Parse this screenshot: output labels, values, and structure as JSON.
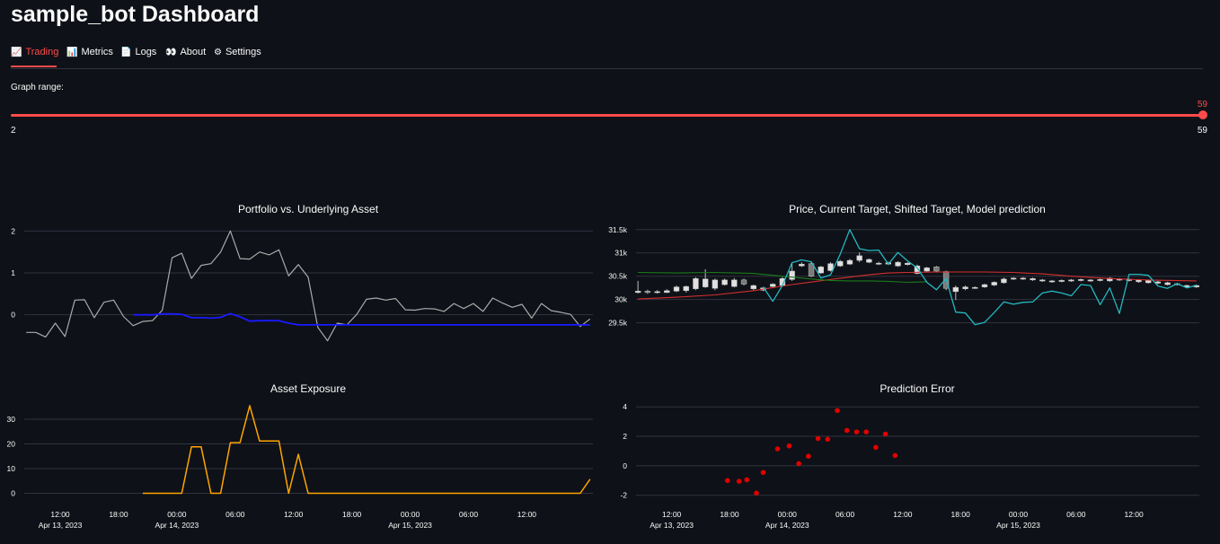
{
  "app": {
    "title": "sample_bot Dashboard"
  },
  "tabs": [
    {
      "icon": "📈",
      "label": "Trading"
    },
    {
      "icon": "📊",
      "label": "Metrics"
    },
    {
      "icon": "📄",
      "label": "Logs"
    },
    {
      "icon": "👀",
      "label": "About"
    },
    {
      "icon": "⚙",
      "label": "Settings"
    }
  ],
  "range": {
    "label": "Graph range:",
    "value": "59",
    "min": "2",
    "max": "59",
    "fraction": 1.0
  },
  "colors": {
    "accent": "#ff4b4b",
    "portfolio": "#aaaaaa",
    "underlying": "#1a1aff",
    "exposure": "#ffa500",
    "model": "#23b8c0",
    "current_target": "#d32f2f",
    "shifted_target": "#1b7a1b",
    "error": "#e00000"
  },
  "time_axis": {
    "labels": [
      {
        "h": 12,
        "text": "12:00",
        "date": "Apr 13, 2023"
      },
      {
        "h": 18,
        "text": "18:00",
        "date": ""
      },
      {
        "h": 24,
        "text": "00:00",
        "date": "Apr 14, 2023"
      },
      {
        "h": 30,
        "text": "06:00",
        "date": ""
      },
      {
        "h": 36,
        "text": "12:00",
        "date": ""
      },
      {
        "h": 42,
        "text": "18:00",
        "date": ""
      },
      {
        "h": 48,
        "text": "00:00",
        "date": "Apr 15, 2023"
      },
      {
        "h": 54,
        "text": "06:00",
        "date": ""
      },
      {
        "h": 60,
        "text": "12:00",
        "date": ""
      }
    ]
  },
  "chart_data": [
    {
      "type": "line",
      "title": "Portfolio vs. Underlying Asset",
      "ylim": [
        -0.95,
        2.2
      ],
      "yticks": [
        0,
        1,
        2
      ],
      "xlim": [
        8.3,
        66.8
      ],
      "grid": true,
      "series": [
        {
          "x": [
            8.5,
            9.5,
            10.5,
            11.5,
            12.5,
            13.5,
            14.5,
            15.5,
            16.5,
            17.5,
            18.5,
            19.5,
            20.5,
            21.5,
            22.5,
            23.5,
            24.5,
            25.5,
            26.5,
            27.5,
            28.5,
            29.5,
            30.5,
            31.5,
            32.5,
            33.5,
            34.5,
            35.5,
            36.5,
            37.5,
            38.5,
            39.5,
            40.5,
            41.5,
            42.5,
            43.5,
            44.5,
            45.5,
            46.5,
            47.5,
            48.5,
            49.5,
            50.5,
            51.5,
            52.5,
            53.5,
            54.5,
            55.5,
            56.5,
            57.5,
            58.5,
            59.5,
            60.5,
            61.5,
            62.5,
            63.5,
            64.5,
            65.5,
            66.5
          ],
          "values": [
            -0.42,
            -0.42,
            -0.53,
            -0.2,
            -0.52,
            0.35,
            0.36,
            -0.07,
            0.3,
            0.35,
            -0.04,
            -0.26,
            -0.16,
            -0.14,
            0.11,
            1.36,
            1.47,
            0.87,
            1.18,
            1.22,
            1.5,
            2.0,
            1.34,
            1.33,
            1.5,
            1.43,
            1.55,
            0.93,
            1.2,
            0.9,
            -0.3,
            -0.62,
            -0.2,
            -0.24,
            0.01,
            0.37,
            0.4,
            0.35,
            0.39,
            0.12,
            0.11,
            0.15,
            0.14,
            0.08,
            0.27,
            0.15,
            0.27,
            0.08,
            0.4,
            0.28,
            0.18,
            0.25,
            -0.08,
            0.27,
            0.1,
            0.06,
            0.01,
            -0.28,
            -0.1
          ]
        },
        {
          "x": [
            19.5,
            20.5,
            21.5,
            22.5,
            23.5,
            24.5,
            25.5,
            26.5,
            27.5,
            28.5,
            29.5,
            30.5,
            31.5,
            32.5,
            33.5,
            34.5,
            35.5,
            36.5,
            37.5,
            38.5,
            39.5,
            40.5,
            41.5,
            42.5,
            43.5,
            44.5,
            45.5,
            46.5,
            47.5,
            48.5,
            49.5,
            50.5,
            51.5,
            52.5,
            53.5,
            54.5,
            55.5,
            56.5,
            57.5,
            58.5,
            59.5,
            60.5,
            61.5,
            62.5,
            63.5,
            64.5,
            65.5,
            66.5
          ],
          "values": [
            0.0,
            0.0,
            0.0,
            0.02,
            0.02,
            0.01,
            -0.07,
            -0.07,
            -0.08,
            -0.06,
            0.03,
            -0.05,
            -0.15,
            -0.14,
            -0.14,
            -0.14,
            -0.2,
            -0.24,
            -0.24,
            -0.24,
            -0.24,
            -0.24,
            -0.24,
            -0.24,
            -0.24,
            -0.24,
            -0.24,
            -0.24,
            -0.24,
            -0.24,
            -0.24,
            -0.24,
            -0.24,
            -0.24,
            -0.24,
            -0.24,
            -0.24,
            -0.24,
            -0.24,
            -0.24,
            -0.24,
            -0.24,
            -0.24,
            -0.24,
            -0.24,
            -0.24,
            -0.24,
            -0.24
          ]
        }
      ]
    },
    {
      "type": "line",
      "title": "Price, Current Target, Shifted Target, Model prediction",
      "ylim": [
        29300,
        31650
      ],
      "yticks": [
        29500,
        30000,
        30500,
        31000,
        31500
      ],
      "yticklabels": [
        "29.5k",
        "30k",
        "30.5k",
        "31k",
        "31.5k"
      ],
      "xlim": [
        8.3,
        66.8
      ],
      "grid": true,
      "candles": [
        [
          8.5,
          30150,
          30180,
          30400,
          30130
        ],
        [
          9.5,
          30180,
          30150,
          30210,
          30120
        ],
        [
          10.5,
          30150,
          30170,
          30200,
          30130
        ],
        [
          11.5,
          30150,
          30190,
          30220,
          30140
        ],
        [
          12.5,
          30180,
          30270,
          30300,
          30160
        ],
        [
          13.5,
          30190,
          30280,
          30300,
          30150
        ],
        [
          14.5,
          30230,
          30450,
          30480,
          30200
        ],
        [
          15.5,
          30270,
          30440,
          30650,
          30250
        ],
        [
          16.5,
          30240,
          30420,
          30450,
          30200
        ],
        [
          17.5,
          30320,
          30420,
          30450,
          30300
        ],
        [
          18.5,
          30280,
          30420,
          30460,
          30260
        ],
        [
          19.5,
          30420,
          30330,
          30450,
          30300
        ],
        [
          20.5,
          30230,
          30300,
          30320,
          30200
        ],
        [
          21.5,
          30200,
          30250,
          30270,
          30180
        ],
        [
          22.5,
          30280,
          30330,
          30350,
          30250
        ],
        [
          23.5,
          30300,
          30450,
          30480,
          30280
        ],
        [
          24.5,
          30430,
          30610,
          30800,
          30400
        ],
        [
          25.5,
          30720,
          30760,
          30800,
          30700
        ],
        [
          26.5,
          30770,
          30500,
          30800,
          30480
        ],
        [
          27.5,
          30570,
          30700,
          30720,
          30550
        ],
        [
          28.5,
          30620,
          30770,
          30800,
          30600
        ],
        [
          29.5,
          30720,
          30820,
          30850,
          30700
        ],
        [
          30.5,
          30760,
          30840,
          30870,
          30740
        ],
        [
          31.5,
          30840,
          30940,
          31010,
          30800
        ],
        [
          32.5,
          30800,
          30860,
          30880,
          30780
        ],
        [
          33.5,
          30760,
          30780,
          30810,
          30740
        ],
        [
          34.5,
          30760,
          30790,
          30810,
          30740
        ],
        [
          35.5,
          30720,
          30800,
          30820,
          30700
        ],
        [
          36.5,
          30750,
          30780,
          30800,
          30730
        ],
        [
          37.5,
          30560,
          30720,
          30750,
          30540
        ],
        [
          38.5,
          30610,
          30680,
          30700,
          30590
        ],
        [
          39.5,
          30700,
          30610,
          30720,
          30580
        ],
        [
          40.5,
          30600,
          30240,
          30620,
          30200
        ],
        [
          41.5,
          30170,
          30260,
          30300,
          29990
        ],
        [
          42.5,
          30230,
          30270,
          30300,
          30200
        ],
        [
          43.5,
          30250,
          30260,
          30280,
          30230
        ],
        [
          44.5,
          30270,
          30320,
          30340,
          30250
        ],
        [
          45.5,
          30310,
          30370,
          30390,
          30290
        ],
        [
          46.5,
          30360,
          30440,
          30470,
          30340
        ],
        [
          47.5,
          30440,
          30460,
          30480,
          30420
        ],
        [
          48.5,
          30440,
          30460,
          30480,
          30420
        ],
        [
          49.5,
          30420,
          30450,
          30470,
          30400
        ],
        [
          50.5,
          30400,
          30420,
          30440,
          30380
        ],
        [
          51.5,
          30380,
          30400,
          30420,
          30360
        ],
        [
          52.5,
          30390,
          30410,
          30430,
          30370
        ],
        [
          53.5,
          30400,
          30420,
          30440,
          30380
        ],
        [
          54.5,
          30410,
          30430,
          30450,
          30390
        ],
        [
          55.5,
          30400,
          30420,
          30440,
          30380
        ],
        [
          56.5,
          30410,
          30430,
          30450,
          30390
        ],
        [
          57.5,
          30400,
          30460,
          30480,
          30380
        ],
        [
          58.5,
          30420,
          30440,
          30460,
          30400
        ],
        [
          59.5,
          30410,
          30430,
          30450,
          30390
        ],
        [
          60.5,
          30380,
          30420,
          30440,
          30360
        ],
        [
          61.5,
          30360,
          30410,
          30430,
          30340
        ],
        [
          62.5,
          30350,
          30380,
          30400,
          30330
        ],
        [
          63.5,
          30320,
          30360,
          30380,
          30300
        ],
        [
          64.5,
          30320,
          30340,
          30360,
          30300
        ],
        [
          65.5,
          30270,
          30300,
          30320,
          30250
        ],
        [
          66.5,
          30270,
          30300,
          30320,
          30250
        ]
      ],
      "series": [
        {
          "x": [
            8.5,
            12.5,
            16.5,
            20.5,
            24.5,
            28.5,
            32.5,
            34.5,
            36.5,
            39.5,
            41.5,
            44.5,
            47.5,
            50.5,
            53.5,
            57.5,
            61.5,
            66.5
          ],
          "values": [
            30010,
            30050,
            30100,
            30190,
            30320,
            30430,
            30530,
            30570,
            30580,
            30590,
            30590,
            30590,
            30580,
            30550,
            30500,
            30450,
            30420,
            30400
          ]
        },
        {
          "x": [
            8.5,
            12.5,
            16.5,
            18.5,
            20.5,
            22.5,
            24.5,
            26.5,
            28.5,
            30.5,
            32.5,
            34.5,
            36.5,
            38.5
          ],
          "values": [
            30580,
            30570,
            30580,
            30570,
            30560,
            30520,
            30480,
            30440,
            30410,
            30400,
            30400,
            30390,
            30370,
            30380
          ]
        },
        {
          "x": [
            21.5,
            22.5,
            23.5,
            24.5,
            25.5,
            26.5,
            27.5,
            28.5,
            29.5,
            30.5,
            31.5,
            32.5,
            33.5,
            34.5,
            35.5,
            36.5,
            37.5,
            38.5,
            39.5,
            40.5,
            41.5,
            42.5,
            43.5,
            44.5,
            45.5,
            46.5,
            47.5,
            48.5,
            49.5,
            50.5,
            51.5,
            52.5,
            53.5,
            54.5,
            55.5,
            56.5,
            57.5,
            58.5,
            59.5,
            60.5,
            61.5,
            62.5,
            63.5,
            64.5,
            65.5,
            66.5
          ],
          "values": [
            30270,
            29960,
            30300,
            30790,
            30850,
            30810,
            30460,
            30530,
            30970,
            31500,
            31090,
            31050,
            31060,
            30760,
            31010,
            30830,
            30680,
            30370,
            30210,
            30450,
            29730,
            29710,
            29460,
            29510,
            29720,
            29950,
            29900,
            29940,
            29950,
            30140,
            30180,
            30140,
            30080,
            30320,
            30300,
            29890,
            30250,
            29700,
            30540,
            30540,
            30520,
            30290,
            30240,
            30340,
            30250,
            30310
          ]
        }
      ]
    },
    {
      "type": "line",
      "title": "Asset Exposure",
      "ylim": [
        -2,
        38
      ],
      "yticks": [
        0,
        10,
        20,
        30
      ],
      "xlim": [
        8.3,
        66.8
      ],
      "grid": true,
      "series": [
        {
          "x": [
            20.5,
            21.5,
            22.5,
            23.5,
            24.5,
            25.5,
            26.5,
            27.5,
            28.5,
            29.5,
            30.5,
            31.5,
            32.5,
            33.5,
            34.5,
            35.5,
            36.5,
            37.5,
            38.5,
            39.5,
            40.5,
            41.5,
            42.5,
            43.5,
            44.5,
            45.5,
            46.5,
            47.5,
            48.5,
            49.5,
            50.5,
            51.5,
            52.5,
            53.5,
            54.5,
            55.5,
            56.5,
            57.5,
            58.5,
            59.5,
            60.5,
            61.5,
            62.5,
            63.5,
            64.5,
            65.5,
            66.5
          ],
          "values": [
            0,
            0,
            0,
            0,
            0,
            18.8,
            18.8,
            0,
            0,
            20.5,
            20.5,
            35.5,
            21.2,
            21.2,
            21.2,
            0,
            15.8,
            0,
            0,
            0,
            0,
            0,
            0,
            0,
            0,
            0,
            0,
            0,
            0,
            0,
            0,
            0,
            0,
            0,
            0,
            0,
            0,
            0,
            0,
            0,
            0,
            0,
            0,
            0,
            0,
            0,
            5.7
          ]
        }
      ]
    },
    {
      "type": "scatter",
      "title": "Prediction Error",
      "ylim": [
        -2.2,
        4.5
      ],
      "yticks": [
        -2,
        0,
        2,
        4
      ],
      "xlim": [
        8.3,
        66.8
      ],
      "grid": true,
      "series": [
        {
          "x": [
            17.8,
            19.0,
            19.8,
            20.8,
            21.5,
            23.0,
            24.2,
            25.2,
            26.2,
            27.2,
            28.2,
            29.2,
            30.2,
            31.2,
            32.2,
            33.2,
            34.2,
            35.2
          ],
          "values": [
            -1.0,
            -1.05,
            -0.95,
            -1.85,
            -0.45,
            1.15,
            1.35,
            0.15,
            0.65,
            1.85,
            1.8,
            3.75,
            2.4,
            2.3,
            2.3,
            1.25,
            2.15,
            0.7
          ]
        }
      ]
    }
  ]
}
